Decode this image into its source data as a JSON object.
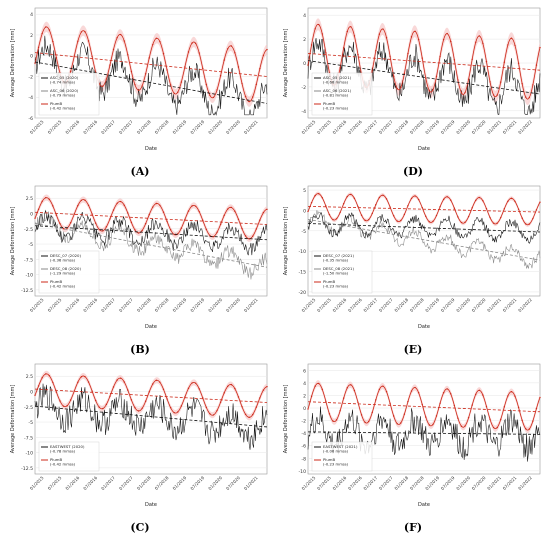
{
  "panels": [
    {
      "label": "(A)",
      "xlabel": "Date",
      "ylabel": "Average Deformation [mm]",
      "yticks": [
        4,
        2,
        0,
        -2,
        -4,
        -6
      ],
      "ylim": [
        -6,
        4.6
      ],
      "xticks": [
        "01/2015",
        "07/2015",
        "01/2016",
        "07/2016",
        "01/2017",
        "07/2017",
        "01/2018",
        "07/2018",
        "01/2019",
        "07/2019",
        "01/2020",
        "07/2020",
        "01/2021"
      ],
      "legend": [
        "ASC_05 (2020)\n(-0.74 mm/a)",
        "ASC_06 (2020)\n(-0.79 mm/a)",
        "PlumB\n(-0.42 mm/a)"
      ]
    },
    {
      "label": "(D)",
      "xlabel": "Date",
      "ylabel": "Average Deformation [mm]",
      "yticks": [
        4,
        2,
        0,
        -2,
        -4
      ],
      "ylim": [
        -4.6,
        4.6
      ],
      "xticks": [
        "01/2015",
        "07/2015",
        "01/2016",
        "07/2016",
        "01/2017",
        "07/2017",
        "01/2018",
        "07/2018",
        "01/2019",
        "07/2019",
        "01/2020",
        "07/2020",
        "01/2021",
        "07/2021",
        "01/2022"
      ],
      "legend": [
        "ASC_05 (2021)\n(-0.66 mm/a)",
        "ASC_06 (2021)\n(-0.81 mm/a)",
        "PlumB\n(-0.23 mm/a)"
      ]
    },
    {
      "label": "(B)",
      "xlabel": "Date",
      "ylabel": "Average Deformation [mm]",
      "yticks": [
        2.5,
        0,
        -2.5,
        -5,
        -7.5,
        -10,
        -12.5
      ],
      "ylim": [
        -13.5,
        4.5
      ],
      "xticks": [
        "01/2015",
        "07/2015",
        "01/2016",
        "07/2016",
        "01/2017",
        "07/2017",
        "01/2018",
        "07/2018",
        "01/2019",
        "07/2019",
        "01/2020",
        "07/2020",
        "01/2021"
      ],
      "legend": [
        "DESC_07 (2020)\n(-0.36 mm/a)",
        "DESC_08 (2020)\n(-1.29 mm/a)",
        "PlumB\n(-0.42 mm/a)"
      ]
    },
    {
      "label": "(E)",
      "xlabel": "Date",
      "ylabel": "Average Deformation [mm]",
      "yticks": [
        5,
        0,
        -5,
        -10,
        -15,
        -20
      ],
      "ylim": [
        -21,
        6
      ],
      "xticks": [
        "01/2015",
        "07/2015",
        "01/2016",
        "07/2016",
        "01/2017",
        "07/2017",
        "01/2018",
        "07/2018",
        "01/2019",
        "07/2019",
        "01/2020",
        "07/2020",
        "01/2021",
        "07/2021",
        "01/2022"
      ],
      "legend": [
        "DESC_07 (2021)\n(-0.35 mm/a)",
        "DESC_08 (2021)\n(-1.50 mm/a)",
        "PlumB\n(-0.23 mm/a)"
      ]
    },
    {
      "label": "(C)",
      "xlabel": "Date",
      "ylabel": "Average Deformation [mm]",
      "yticks": [
        2.5,
        0,
        -2.5,
        -5,
        -7.5,
        -10,
        -12.5
      ],
      "ylim": [
        -13.5,
        4.5
      ],
      "xticks": [
        "01/2015",
        "07/2015",
        "01/2016",
        "07/2016",
        "01/2017",
        "07/2017",
        "01/2018",
        "07/2018",
        "01/2019",
        "07/2019",
        "01/2020",
        "07/2020",
        "01/2021"
      ],
      "legend": [
        "EASTWEST (2020)\n(-0.78 mm/a)",
        "PlumB\n(-0.42 mm/a)"
      ]
    },
    {
      "label": "(F)",
      "xlabel": "Date",
      "ylabel": "Average Deformation [mm]",
      "yticks": [
        6,
        4,
        2,
        0,
        -2,
        -4,
        -6,
        -8,
        -10
      ],
      "ylim": [
        -10.5,
        7
      ],
      "xticks": [
        "01/2015",
        "07/2015",
        "01/2016",
        "07/2016",
        "01/2017",
        "07/2017",
        "01/2018",
        "07/2018",
        "01/2019",
        "07/2019",
        "01/2020",
        "07/2020",
        "01/2021",
        "07/2021",
        "01/2022"
      ],
      "legend": [
        "EASTWEST (2021)\n(-0.06 mm/a)",
        "PlumB\n(-0.23 mm/a)"
      ]
    }
  ],
  "chart_data": [
    {
      "type": "line",
      "panel": "(A)",
      "x_start": "01/2015",
      "x_end": "04/2021",
      "plumb_amplitude": 2.6,
      "plumb_trend_start": 0.3,
      "plumb_trend_end": -2.0,
      "black_trend_start": -0.6,
      "black_trend_end": -4.6,
      "series_names": [
        "ASC_05 (2020)",
        "ASC_06 (2020)",
        "PlumB"
      ]
    },
    {
      "type": "line",
      "panel": "(D)",
      "x_start": "01/2015",
      "x_end": "03/2022",
      "plumb_amplitude": 2.5,
      "plumb_trend_start": 0.8,
      "plumb_trend_end": -0.6,
      "black_trend_start": 0.2,
      "black_trend_end": -2.6,
      "series_names": [
        "ASC_05 (2021)",
        "ASC_06 (2021)",
        "PlumB"
      ]
    },
    {
      "type": "line",
      "panel": "(B)",
      "x_start": "01/2015",
      "x_end": "04/2021",
      "plumb_amplitude": 2.5,
      "plumb_trend_start": 0.2,
      "plumb_trend_end": -1.8,
      "black_trend_start": -2.0,
      "black_trend_end": -4.3,
      "gray_trend_start": -1.6,
      "gray_trend_end": -8.8,
      "series_names": [
        "DESC_07 (2020)",
        "DESC_08 (2020)",
        "PlumB"
      ]
    },
    {
      "type": "line",
      "panel": "(E)",
      "x_start": "01/2015",
      "x_end": "03/2022",
      "plumb_amplitude": 3.2,
      "plumb_trend_start": 1.0,
      "plumb_trend_end": -0.4,
      "black_trend_start": -3.2,
      "black_trend_end": -5.3,
      "gray_trend_start": -2.2,
      "gray_trend_end": -12.2,
      "series_names": [
        "DESC_07 (2021)",
        "DESC_08 (2021)",
        "PlumB"
      ]
    },
    {
      "type": "line",
      "panel": "(C)",
      "x_start": "01/2015",
      "x_end": "04/2021",
      "plumb_amplitude": 2.6,
      "plumb_trend_start": 0.4,
      "plumb_trend_end": -1.8,
      "black_trend_start": -2.4,
      "black_trend_end": -5.8,
      "series_names": [
        "EASTWEST (2020)",
        "PlumB"
      ]
    },
    {
      "type": "line",
      "panel": "(F)",
      "x_start": "01/2015",
      "x_end": "03/2022",
      "plumb_amplitude": 3.0,
      "plumb_trend_start": 1.0,
      "plumb_trend_end": -0.6,
      "black_trend_start": -3.8,
      "black_trend_end": -4.2,
      "series_names": [
        "EASTWEST (2021)",
        "PlumB"
      ]
    }
  ],
  "colors": {
    "plumb": "#cc2a1a",
    "black": "#111111",
    "gray": "#888888",
    "band": "#f7c7c7"
  }
}
